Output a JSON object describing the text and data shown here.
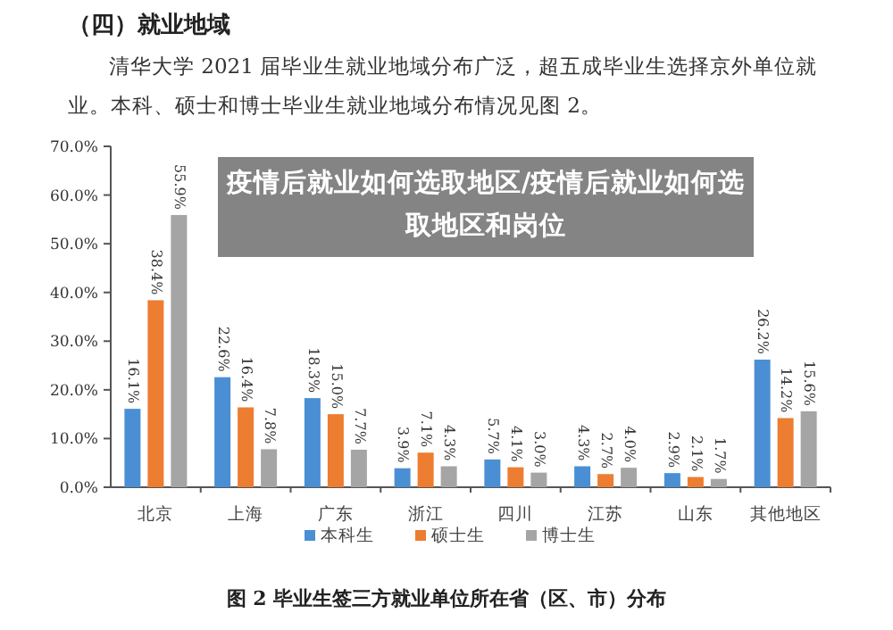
{
  "chart_data": {
    "type": "bar",
    "title": "（四）就业地域",
    "subtitle": "清华大学 2021 届毕业生就业地域分布广泛，超五成毕业生选择京外单位就业。本科、硕士和博士毕业生就业地域分布情况见图 2。",
    "categories": [
      "北京",
      "上海",
      "广东",
      "浙江",
      "四川",
      "江苏",
      "山东",
      "其他地区"
    ],
    "series": [
      {
        "name": "本科生",
        "color": "#4a8fd4",
        "values": [
          16.1,
          22.6,
          18.3,
          3.9,
          5.7,
          4.3,
          2.9,
          26.2
        ],
        "value_labels": [
          "16.1%",
          "22.6%",
          "18.3%",
          "3.9%",
          "5.7%",
          "4.3%",
          "2.9%",
          "26.2%"
        ]
      },
      {
        "name": "硕士生",
        "color": "#ed7d31",
        "values": [
          38.4,
          16.4,
          15.0,
          7.1,
          4.1,
          2.7,
          2.1,
          14.2
        ],
        "value_labels": [
          "38.4%",
          "16.4%",
          "15.0%",
          "7.1%",
          "4.1%",
          "2.7%",
          "2.1%",
          "14.2%"
        ]
      },
      {
        "name": "博士生",
        "color": "#a5a5a5",
        "values": [
          55.9,
          7.8,
          7.7,
          4.3,
          3.0,
          4.0,
          1.7,
          15.6
        ],
        "value_labels": [
          "55.9%",
          "7.8%",
          "7.7%",
          "4.3%",
          "3.0%",
          "4.0%",
          "1.7%",
          "15.6%"
        ]
      }
    ],
    "ylim": [
      0,
      70
    ],
    "yticks": [
      {
        "value": 0,
        "label": "0.0%"
      },
      {
        "value": 10,
        "label": "10.0%"
      },
      {
        "value": 20,
        "label": "20.0%"
      },
      {
        "value": 30,
        "label": "30.0%"
      },
      {
        "value": 40,
        "label": "40.0%"
      },
      {
        "value": 50,
        "label": "50.0%"
      },
      {
        "value": 60,
        "label": "60.0%"
      },
      {
        "value": 70,
        "label": "70.0%"
      }
    ],
    "grid": false,
    "legend": "bottom",
    "annotations": [
      "疫情后就业如何选取地区/疫情后就业如何选取地区和岗位",
      "图 2 毕业生签三方就业单位所在省（区、市）分布"
    ]
  }
}
